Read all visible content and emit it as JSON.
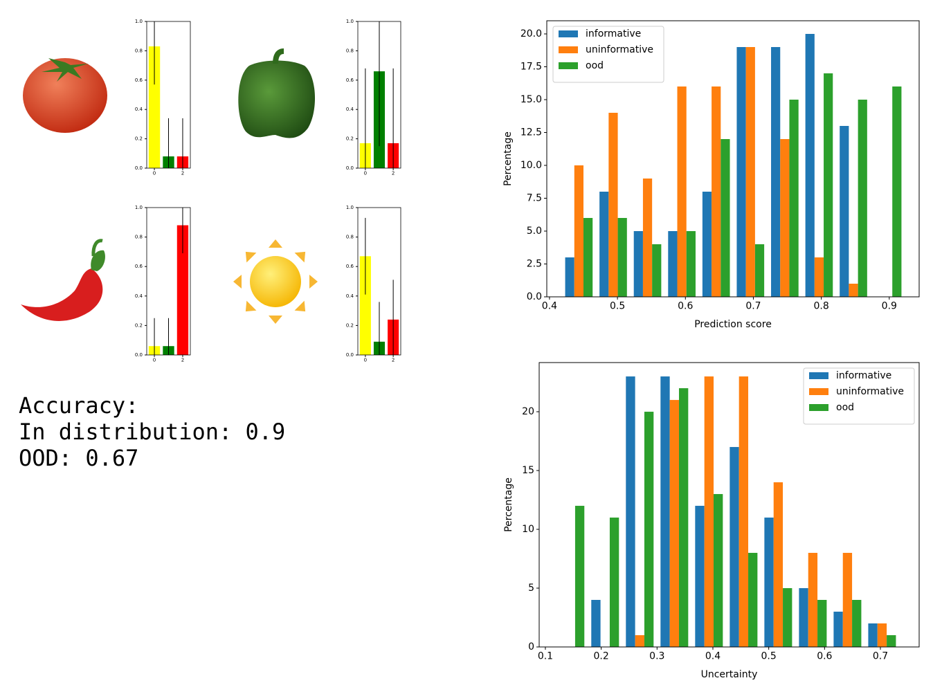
{
  "chart_data": [
    {
      "type": "bar",
      "x": [
        0,
        1,
        2
      ],
      "values": [
        0.83,
        0.08,
        0.08
      ],
      "errors": [
        0.26,
        0.26,
        0.26
      ],
      "colors": [
        "#ffff00",
        "#008000",
        "#ff0000"
      ],
      "xlim": [
        -0.54,
        2.54
      ],
      "xticks": [
        0,
        2
      ],
      "ylim": [
        0,
        1
      ],
      "yticks": [
        {
          "value": 0,
          "label": "0.0"
        },
        0.2,
        0.4,
        0.6,
        0.8,
        {
          "value": 1,
          "label": "1.0"
        }
      ]
    },
    {
      "type": "bar",
      "x": [
        0,
        1,
        2
      ],
      "values": [
        0.17,
        0.66,
        0.17
      ],
      "errors": [
        0.51,
        0.51,
        0.51
      ],
      "colors": [
        "#ffff00",
        "#008000",
        "#ff0000"
      ],
      "xlim": [
        -0.54,
        2.54
      ],
      "xticks": [
        0,
        2
      ],
      "ylim": [
        0,
        1
      ],
      "yticks": [
        {
          "value": 0,
          "label": "0.0"
        },
        0.2,
        0.4,
        0.6,
        0.8,
        {
          "value": 1,
          "label": "1.0"
        }
      ]
    },
    {
      "type": "bar",
      "x": [
        0,
        1,
        2
      ],
      "values": [
        0.06,
        0.06,
        0.88
      ],
      "errors": [
        0.19,
        0.19,
        0.19
      ],
      "colors": [
        "#ffff00",
        "#008000",
        "#ff0000"
      ],
      "xlim": [
        -0.54,
        2.54
      ],
      "xticks": [
        0,
        2
      ],
      "ylim": [
        0,
        1
      ],
      "yticks": [
        {
          "value": 0,
          "label": "0.0"
        },
        0.2,
        0.4,
        0.6,
        0.8,
        {
          "value": 1,
          "label": "1.0"
        }
      ]
    },
    {
      "type": "bar",
      "x": [
        0,
        1,
        2
      ],
      "values": [
        0.67,
        0.09,
        0.24
      ],
      "errors": [
        0.26,
        0.27,
        0.27
      ],
      "colors": [
        "#ffff00",
        "#008000",
        "#ff0000"
      ],
      "xlim": [
        -0.54,
        2.54
      ],
      "xticks": [
        0,
        2
      ],
      "ylim": [
        0,
        1
      ],
      "yticks": [
        {
          "value": 0,
          "label": "0.0"
        },
        0.2,
        0.4,
        0.6,
        0.8,
        {
          "value": 1,
          "label": "1.0"
        }
      ]
    },
    {
      "type": "histogram",
      "xlabel": "Prediction score",
      "ylabel": "Percentage",
      "legend": "upper left",
      "bins": [
        0.418,
        0.4685,
        0.519,
        0.5695,
        0.62,
        0.6705,
        0.721,
        0.7715,
        0.822,
        0.8725,
        0.923
      ],
      "series": [
        {
          "name": "informative",
          "color": "#1f77b4",
          "values": [
            3,
            8,
            5,
            5,
            8,
            19,
            19,
            20,
            13,
            0
          ]
        },
        {
          "name": "uninformative",
          "color": "#ff7f0e",
          "values": [
            10,
            14,
            9,
            16,
            16,
            19,
            12,
            3,
            1,
            0
          ]
        },
        {
          "name": "ood",
          "color": "#2ca02c",
          "values": [
            6,
            6,
            4,
            5,
            12,
            4,
            15,
            17,
            15,
            16
          ]
        }
      ],
      "xlim": [
        0.396,
        0.944
      ],
      "xticks": [
        0.4,
        0.5,
        0.6,
        0.7,
        0.8,
        0.9
      ],
      "ylim": [
        0,
        21
      ],
      "yticks": [
        {
          "value": 0,
          "label": "0.0"
        },
        2.5,
        {
          "value": 5,
          "label": "5.0"
        },
        7.5,
        {
          "value": 10,
          "label": "10.0"
        },
        12.5,
        {
          "value": 15,
          "label": "15.0"
        },
        17.5,
        {
          "value": 20,
          "label": "20.0"
        }
      ]
    },
    {
      "type": "histogram",
      "xlabel": "Uncertainty",
      "ylabel": "Percentage",
      "legend": "upper right",
      "bins": [
        0.114,
        0.176,
        0.238,
        0.3,
        0.362,
        0.424,
        0.486,
        0.548,
        0.61,
        0.672,
        0.734
      ],
      "series": [
        {
          "name": "informative",
          "color": "#1f77b4",
          "values": [
            0,
            4,
            23,
            23,
            12,
            17,
            11,
            5,
            3,
            2
          ]
        },
        {
          "name": "uninformative",
          "color": "#ff7f0e",
          "values": [
            0,
            0,
            1,
            21,
            23,
            23,
            14,
            8,
            8,
            2
          ]
        },
        {
          "name": "ood",
          "color": "#2ca02c",
          "values": [
            12,
            11,
            20,
            22,
            13,
            8,
            5,
            4,
            4,
            1
          ]
        }
      ],
      "xlim": [
        0.0889,
        0.7694
      ],
      "xticks": [
        0.1,
        0.2,
        0.3,
        0.4,
        0.5,
        0.6,
        0.7
      ],
      "ylim": [
        0,
        24.18
      ],
      "yticks": [
        0,
        5,
        10,
        15,
        20
      ]
    }
  ],
  "summary": {
    "lines": [
      "Accuracy:",
      "In distribution:  0.9",
      "OOD:  0.67"
    ]
  }
}
